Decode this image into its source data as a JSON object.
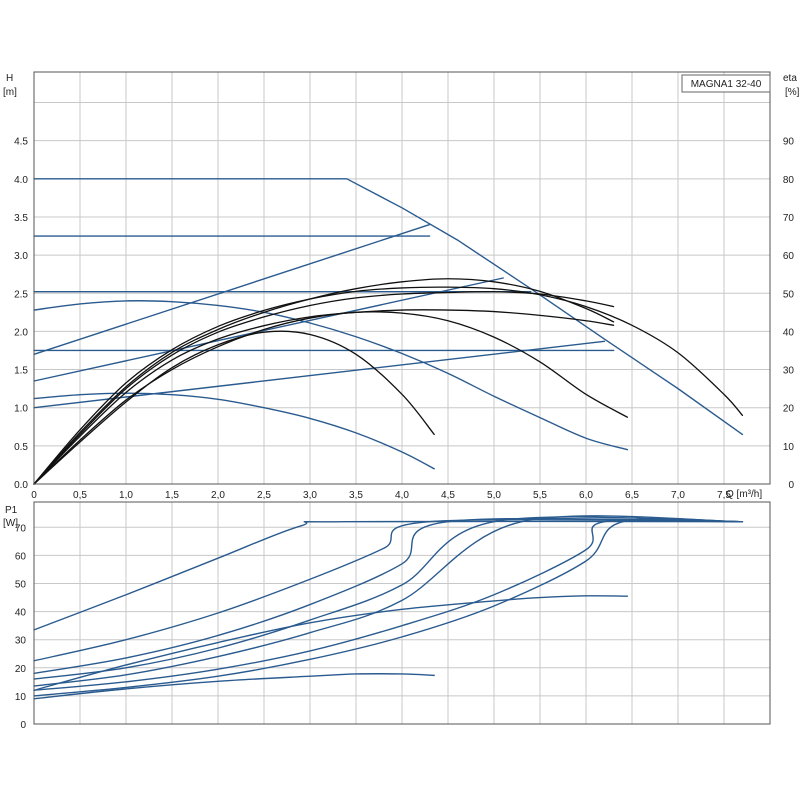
{
  "chart_data": [
    {
      "type": "line",
      "title": "MAGNA1 32-40",
      "xlabel": "Q [m³/h]",
      "ylabel": "H",
      "ylabel_unit": "[m]",
      "y2label": "eta",
      "y2label_unit": "[%]",
      "xlim": [
        0,
        8.0
      ],
      "ylim": [
        0,
        5.4
      ],
      "y2lim": [
        0,
        108
      ],
      "x_ticks": [
        "0",
        "0,5",
        "1,0",
        "1,5",
        "2,0",
        "2,5",
        "3,0",
        "3,5",
        "4,0",
        "4,5",
        "5,0",
        "5,5",
        "6,0",
        "6,5",
        "7,0",
        "7,5"
      ],
      "y_ticks": [
        "0.0",
        "0.5",
        "1.0",
        "1.5",
        "2.0",
        "2.5",
        "3.0",
        "3.5",
        "4.0",
        "4.5"
      ],
      "y2_ticks": [
        "0",
        "10",
        "20",
        "30",
        "40",
        "50",
        "60",
        "70",
        "80",
        "90"
      ],
      "grid": true,
      "series": [
        {
          "kind": "head",
          "color": "#2a5b8f",
          "x": [
            0,
            3.4,
            4.0,
            4.6,
            5.4,
            6.2,
            7.0,
            7.7
          ],
          "y": [
            4.0,
            4.0,
            3.62,
            3.2,
            2.56,
            1.9,
            1.25,
            0.65
          ]
        },
        {
          "kind": "head",
          "color": "#2a5b8f",
          "x": [
            0,
            4.3
          ],
          "y": [
            3.25,
            3.25
          ]
        },
        {
          "kind": "head",
          "color": "#2a5b8f",
          "x": [
            0,
            5.4
          ],
          "y": [
            2.52,
            2.52
          ]
        },
        {
          "kind": "head",
          "color": "#2a5b8f",
          "x": [
            0,
            6.3
          ],
          "y": [
            1.75,
            1.75
          ]
        },
        {
          "kind": "head",
          "color": "#2a5b8f",
          "x": [
            0,
            4.3
          ],
          "y": [
            1.7,
            3.4
          ]
        },
        {
          "kind": "head",
          "color": "#2a5b8f",
          "x": [
            0,
            5.1
          ],
          "y": [
            1.35,
            2.7
          ]
        },
        {
          "kind": "head",
          "color": "#2a5b8f",
          "x": [
            0,
            6.2
          ],
          "y": [
            1.0,
            1.87
          ]
        },
        {
          "kind": "head",
          "color": "#2a5b8f",
          "x": [
            0,
            0.5,
            1.0,
            1.5,
            2.0,
            2.5,
            3.0,
            3.5,
            4.0,
            4.5,
            5.0,
            5.5,
            6.0,
            6.45
          ],
          "y": [
            2.28,
            2.36,
            2.4,
            2.39,
            2.34,
            2.25,
            2.11,
            1.93,
            1.71,
            1.45,
            1.15,
            0.87,
            0.6,
            0.45
          ]
        },
        {
          "kind": "head",
          "color": "#2a5b8f",
          "x": [
            0,
            0.5,
            1.0,
            1.5,
            2.0,
            2.5,
            3.0,
            3.5,
            4.0,
            4.35
          ],
          "y": [
            1.12,
            1.17,
            1.19,
            1.17,
            1.11,
            1.0,
            0.86,
            0.67,
            0.42,
            0.2
          ]
        },
        {
          "kind": "eta",
          "color": "#111111",
          "x": [
            0,
            0.5,
            1.0,
            1.5,
            2.0,
            2.5,
            3.0,
            3.5,
            4.0,
            4.5,
            5.0,
            5.5,
            6.0,
            6.5,
            7.0,
            7.5,
            7.7
          ],
          "y": [
            0,
            14.2,
            26.5,
            35.2,
            41.3,
            45.5,
            48.5,
            50.5,
            51.4,
            51.6,
            51.2,
            49.6,
            46.5,
            41.6,
            34.4,
            23.5,
            18.0
          ]
        },
        {
          "kind": "eta",
          "color": "#111111",
          "x": [
            0,
            0.5,
            1.0,
            1.5,
            2.0,
            2.5,
            3.0,
            3.5,
            4.0,
            4.5,
            5.0,
            5.5,
            6.0,
            6.3
          ],
          "y": [
            0,
            13.5,
            25.5,
            34.5,
            40.5,
            45.0,
            48.5,
            51.2,
            53.0,
            53.8,
            53.0,
            50.5,
            46.0,
            42.5
          ]
        },
        {
          "kind": "eta",
          "color": "#111111",
          "x": [
            0,
            0.5,
            1.0,
            1.5,
            2.0,
            2.5,
            3.0,
            3.5,
            4.0,
            4.5,
            5.0,
            5.5,
            6.0,
            6.3
          ],
          "y": [
            0,
            13.0,
            25.0,
            33.8,
            39.8,
            43.8,
            46.8,
            48.8,
            49.8,
            50.2,
            50.4,
            49.8,
            48.0,
            46.5
          ]
        },
        {
          "kind": "eta",
          "color": "#111111",
          "x": [
            0,
            0.5,
            1.0,
            1.5,
            2.0,
            2.5,
            3.0,
            3.5,
            4.0,
            4.5,
            5.0,
            5.5,
            6.0,
            6.3
          ],
          "y": [
            0,
            12.5,
            24.0,
            32.5,
            38.0,
            41.5,
            43.8,
            45.0,
            45.6,
            45.6,
            45.2,
            44.2,
            42.8,
            41.6
          ]
        },
        {
          "kind": "eta",
          "color": "#111111",
          "x": [
            0,
            0.5,
            1.0,
            1.5,
            2.0,
            2.5,
            3.0,
            3.5,
            4.0,
            4.5,
            5.0,
            5.5,
            6.0,
            6.45
          ],
          "y": [
            0,
            11.5,
            22.0,
            30.0,
            36.0,
            40.5,
            43.5,
            45.0,
            44.8,
            42.8,
            38.5,
            32.0,
            23.5,
            17.5
          ]
        },
        {
          "kind": "eta",
          "color": "#111111",
          "x": [
            0,
            0.5,
            1.0,
            1.5,
            2.0,
            2.5,
            3.0,
            3.5,
            4.0,
            4.35
          ],
          "y": [
            0,
            11.0,
            21.5,
            30.5,
            36.5,
            39.8,
            39.2,
            34.0,
            23.5,
            13.0
          ]
        }
      ]
    },
    {
      "type": "line",
      "xlabel": "Q [m³/h]",
      "ylabel": "P1",
      "ylabel_unit": "[W]",
      "xlim": [
        0,
        8.0
      ],
      "ylim": [
        0,
        79
      ],
      "y_ticks": [
        "0",
        "10",
        "20",
        "30",
        "40",
        "50",
        "60",
        "70"
      ],
      "grid": true,
      "series": [
        {
          "color": "#2a5b8f",
          "x": [
            0,
            1.0,
            2.0,
            2.9,
            3.4,
            7.7
          ],
          "y": [
            33.5,
            46.0,
            59.0,
            70.5,
            72.0,
            72.0
          ]
        },
        {
          "color": "#2a5b8f",
          "x": [
            0,
            1.0,
            2.0,
            3.0,
            3.8,
            4.3,
            7.7
          ],
          "y": [
            22.5,
            30.0,
            39.5,
            51.5,
            62.5,
            72.0,
            72.0
          ]
        },
        {
          "color": "#2a5b8f",
          "x": [
            0,
            1.0,
            2.0,
            3.0,
            4.0,
            4.5,
            7.7
          ],
          "y": [
            18.0,
            23.5,
            31.5,
            42.5,
            57.0,
            72.0,
            72.0
          ]
        },
        {
          "color": "#2a5b8f",
          "x": [
            0,
            1.0,
            2.0,
            3.0,
            4.0,
            5.0,
            7.7
          ],
          "y": [
            16.0,
            20.0,
            27.0,
            37.0,
            49.5,
            72.0,
            72.0
          ]
        },
        {
          "color": "#2a5b8f",
          "x": [
            0,
            1.0,
            2.0,
            3.0,
            4.0,
            5.3,
            7.7
          ],
          "y": [
            13.5,
            17.5,
            24.0,
            32.5,
            44.0,
            72.0,
            72.0
          ]
        },
        {
          "color": "#2a5b8f",
          "x": [
            0,
            1.0,
            2.0,
            3.0,
            4.0,
            5.0,
            6.0,
            6.2,
            7.7
          ],
          "y": [
            12.0,
            15.0,
            19.5,
            26.0,
            35.0,
            46.0,
            62.0,
            72.0,
            72.0
          ]
        },
        {
          "color": "#2a5b8f",
          "x": [
            0,
            1.0,
            2.0,
            3.0,
            4.0,
            5.0,
            6.0,
            6.4,
            7.7
          ],
          "y": [
            10.0,
            13.0,
            17.0,
            23.0,
            31.0,
            42.0,
            58.0,
            72.0,
            72.0
          ]
        },
        {
          "color": "#2a5b8f",
          "x": [
            0,
            1.0,
            2.0,
            3.0,
            4.0,
            5.0,
            5.5,
            6.0,
            6.45
          ],
          "y": [
            12.0,
            21.0,
            29.0,
            36.0,
            40.8,
            43.8,
            45.0,
            45.6,
            45.5
          ]
        },
        {
          "color": "#2a5b8f",
          "x": [
            0,
            1.0,
            2.0,
            3.0,
            3.5,
            4.0,
            4.35
          ],
          "y": [
            9.0,
            12.5,
            15.2,
            17.0,
            17.8,
            17.8,
            17.3
          ]
        }
      ]
    }
  ]
}
